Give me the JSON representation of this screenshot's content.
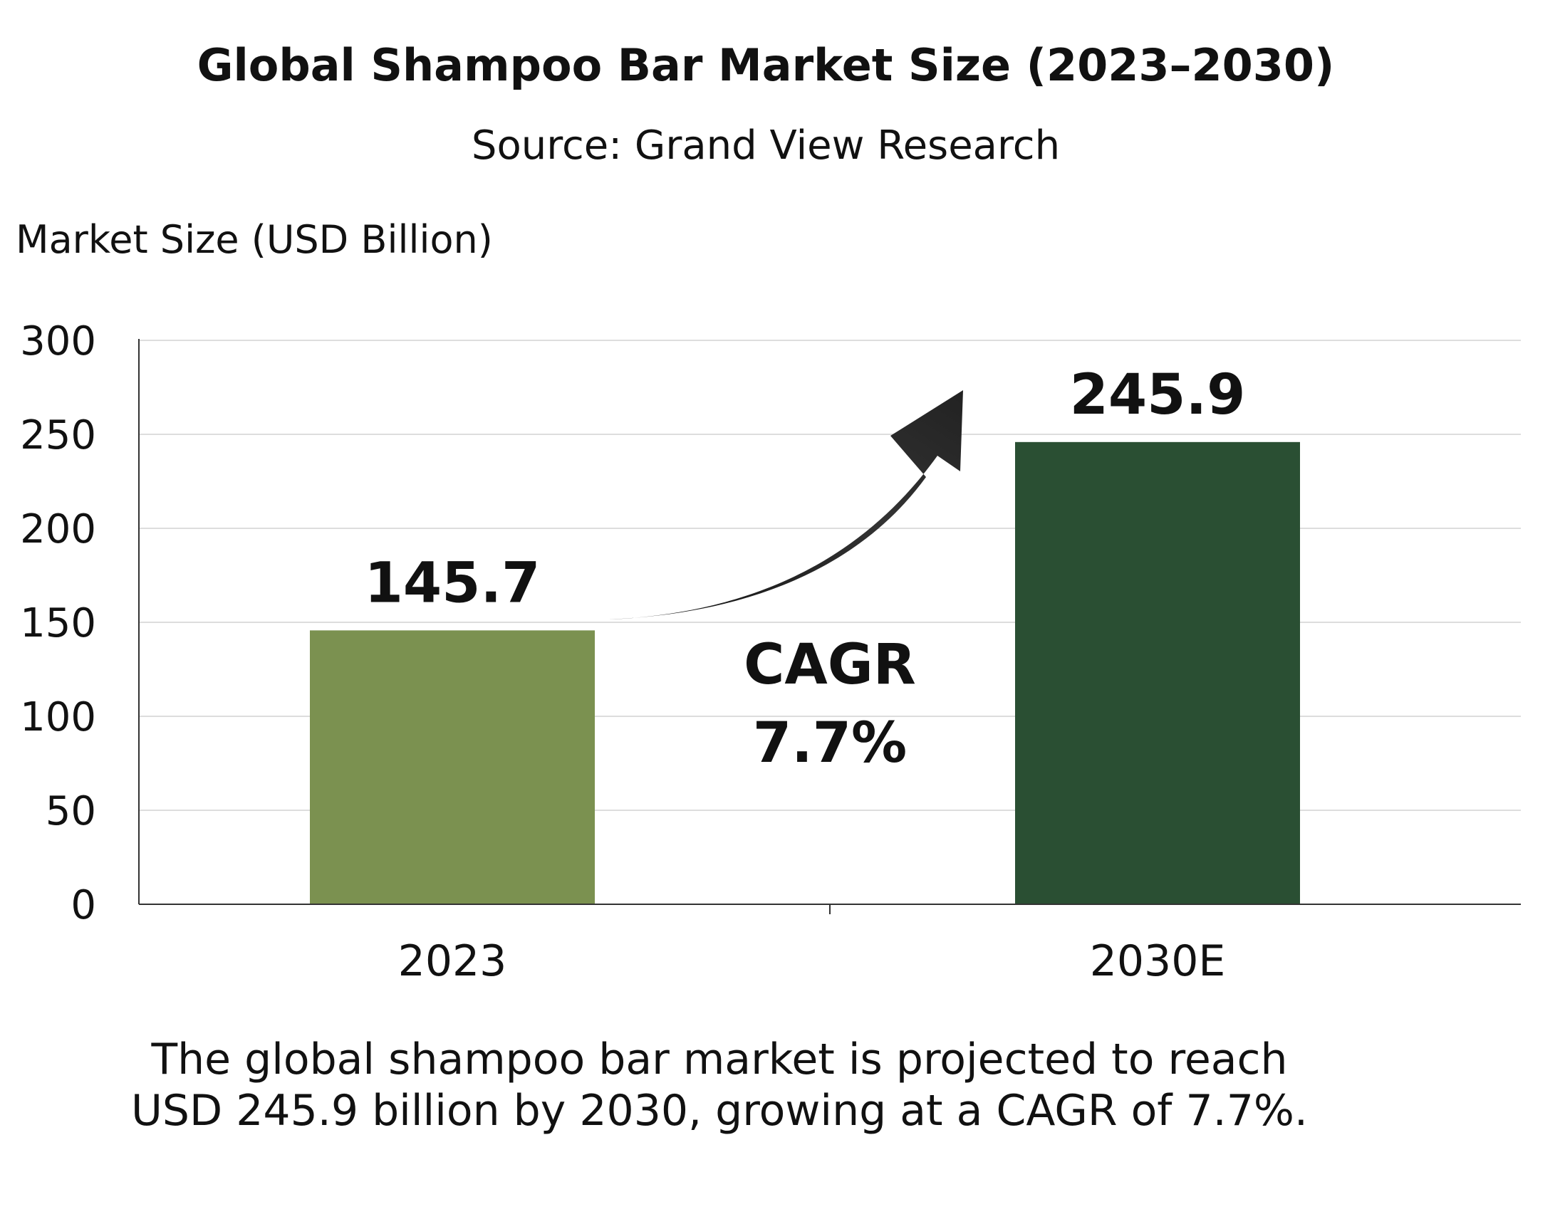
{
  "chart_data": {
    "type": "bar",
    "title": "Global Shampoo Bar Market Size (2023–2030)",
    "subtitle": "Source: Grand View Research",
    "ylabel": "Market Size (USD Billion)",
    "xlabel": "",
    "categories": [
      "2023",
      "2030E"
    ],
    "values": [
      145.7,
      245.9
    ],
    "data_labels": [
      "145.7",
      "245.9"
    ],
    "ylim": [
      0,
      300
    ],
    "yticks": [
      0,
      50,
      100,
      150,
      200,
      250,
      300
    ],
    "grid": true,
    "legend": "none",
    "bar_colors": [
      "#7b9150",
      "#2a4f33"
    ],
    "annotation": {
      "line1": "CAGR",
      "line2": "7.7%"
    }
  },
  "caption": {
    "line1": "The global shampoo bar market is projected to reach",
    "line2": "USD 245.9 billion by 2030, growing at a CAGR of 7.7%."
  },
  "colors": {
    "text": "#111111",
    "grid": "#dddddd",
    "axis": "#333333",
    "arrow": "#222222"
  }
}
